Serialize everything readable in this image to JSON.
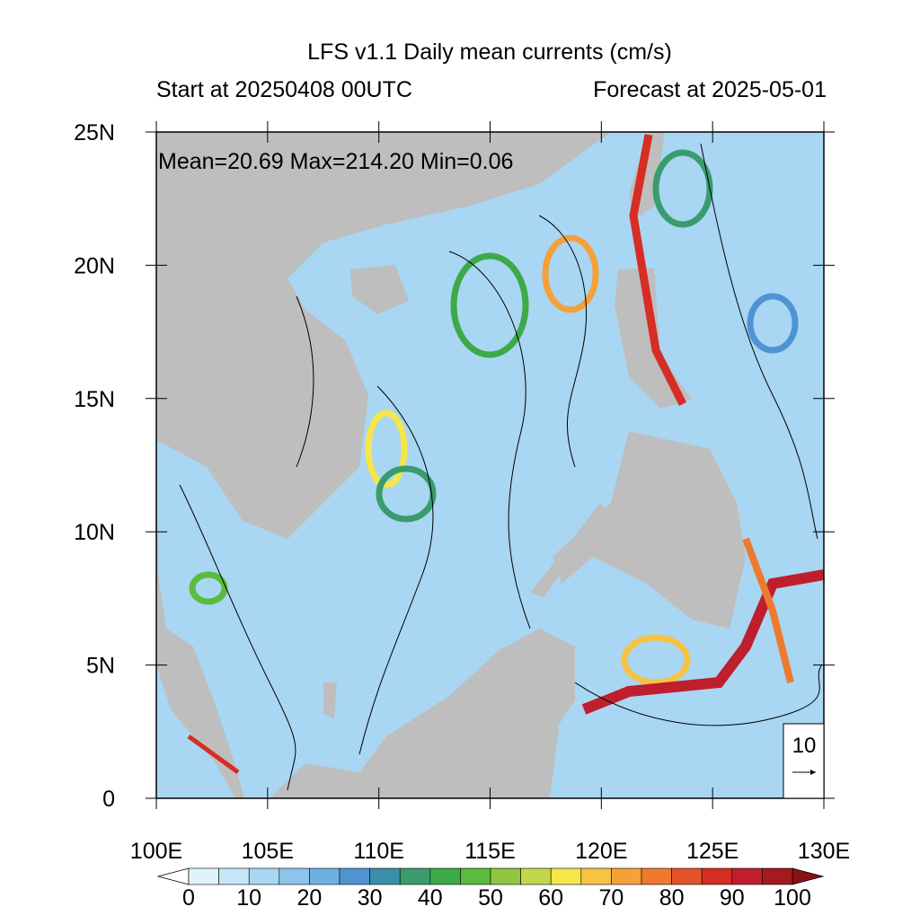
{
  "chart_data": {
    "type": "contour-map",
    "title": "LFS v1.1 Daily mean currents (cm/s)",
    "subtitle_left": "Start at 20250408 00UTC",
    "subtitle_right": "Forecast at 2025-05-01",
    "annotation": "Mean=20.69  Max=214.20  Min=0.06",
    "xlim": [
      100,
      130
    ],
    "ylim": [
      0,
      25
    ],
    "xticks": [
      {
        "value": 100,
        "label": "100E"
      },
      {
        "value": 105,
        "label": "105E"
      },
      {
        "value": 110,
        "label": "110E"
      },
      {
        "value": 115,
        "label": "115E"
      },
      {
        "value": 120,
        "label": "120E"
      },
      {
        "value": 125,
        "label": "125E"
      },
      {
        "value": 130,
        "label": "130E"
      }
    ],
    "yticks": [
      0,
      {
        "value": 5,
        "label": "5N"
      },
      {
        "value": 10,
        "label": "10N"
      },
      {
        "value": 15,
        "label": "15N"
      },
      {
        "value": 20,
        "label": "20N"
      },
      {
        "value": 25,
        "label": "25N"
      }
    ],
    "land_color": "#bebebe",
    "reference_vector": 10,
    "colorbar": {
      "levels": [
        0,
        5,
        10,
        15,
        20,
        25,
        30,
        35,
        40,
        45,
        50,
        55,
        60,
        65,
        70,
        75,
        80,
        85,
        90,
        95,
        100
      ],
      "colors": [
        "#e0f3fb",
        "#c5e6f7",
        "#a9d6f2",
        "#8cc4ec",
        "#6fb0e3",
        "#4e94d3",
        "#3b8fa8",
        "#3a9b6e",
        "#3daa48",
        "#5bbb3c",
        "#90c640",
        "#c3d64a",
        "#f5e64a",
        "#f7c343",
        "#f4a13a",
        "#ee7a30",
        "#e4522a",
        "#d62d25",
        "#be1e2d",
        "#a31a1f"
      ],
      "under_color": "#ffffff",
      "over_color": "#8b1116",
      "ticks": [
        0,
        10,
        20,
        30,
        40,
        50,
        60,
        70,
        80,
        90,
        100
      ]
    }
  }
}
